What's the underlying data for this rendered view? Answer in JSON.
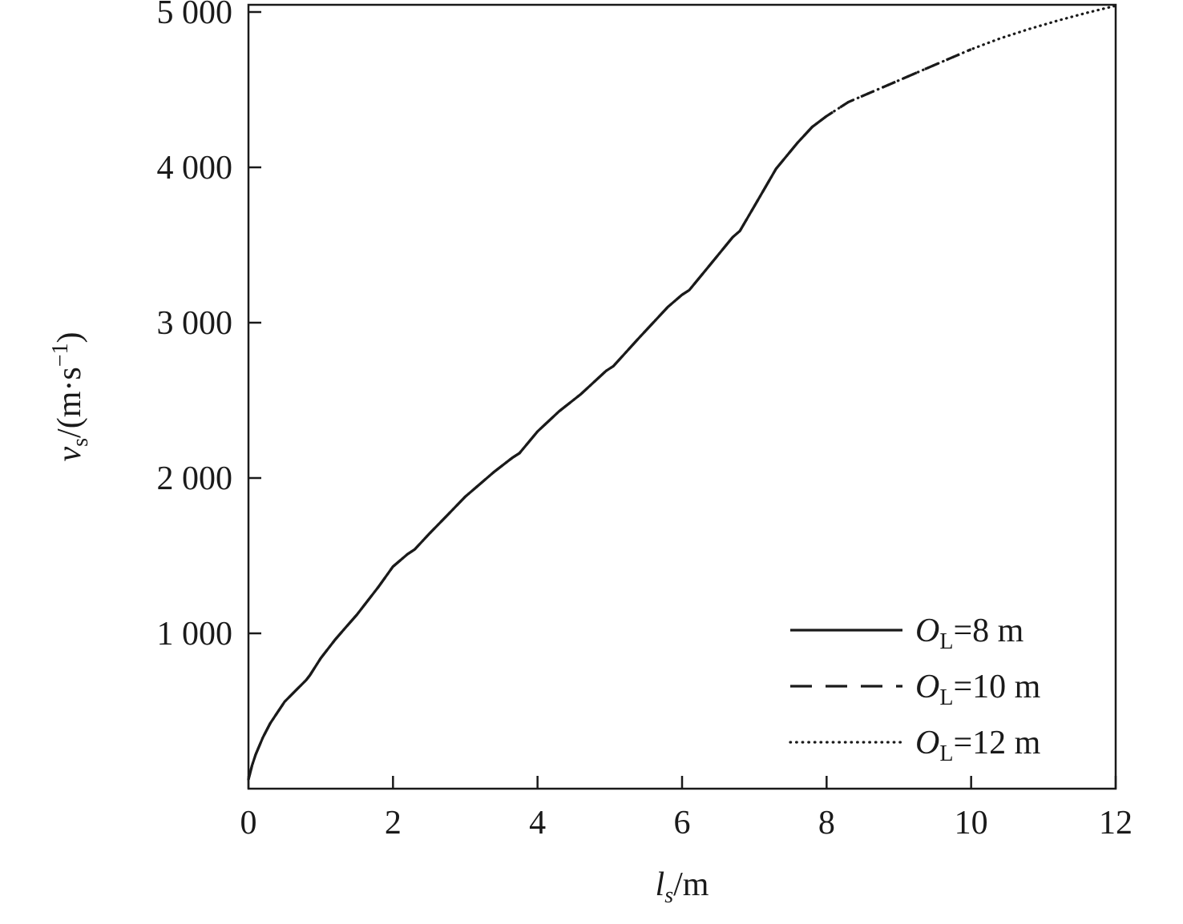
{
  "chart_data": {
    "type": "line",
    "title": "",
    "xlabel": "l_s/m",
    "ylabel": "v_s/(m·s^-1)",
    "xlabel_parts": [
      {
        "t": "l",
        "style": "italic"
      },
      {
        "t": "s",
        "script": "sub",
        "style": "italic"
      },
      {
        "t": "/m"
      }
    ],
    "ylabel_parts": [
      {
        "t": "v",
        "style": "italic"
      },
      {
        "t": "s",
        "script": "sub"
      },
      {
        "t": "/(m·s"
      },
      {
        "t": "−1",
        "script": "sup"
      },
      {
        "t": ")"
      }
    ],
    "xlim": [
      0,
      12
    ],
    "ylim": [
      0,
      5000
    ],
    "grid": false,
    "legend_position": "bottom-right",
    "line_color": "#1a1a1a",
    "xticks": {
      "values": [
        0,
        2,
        4,
        6,
        8,
        10,
        12
      ],
      "labels": [
        "0",
        "2",
        "4",
        "6",
        "8",
        "10",
        "12"
      ]
    },
    "yticks": {
      "values": [
        1000,
        2000,
        3000,
        4000,
        5000
      ],
      "labels": [
        "1 000",
        "2 000",
        "3 000",
        "4 000",
        "5 000"
      ]
    },
    "x": [
      0,
      0.05,
      0.1,
      0.2,
      0.3,
      0.4,
      0.5,
      0.65,
      0.8,
      0.85,
      1,
      1.2,
      1.35,
      1.5,
      1.8,
      2,
      2.2,
      2.3,
      2.5,
      2.75,
      3,
      3.2,
      3.4,
      3.65,
      3.75,
      4,
      4.3,
      4.6,
      4.95,
      5.05,
      5.4,
      5.8,
      6,
      6.1,
      6.4,
      6.7,
      6.8,
      7,
      7.3,
      7.6,
      7.8,
      8,
      8.3,
      8.6,
      9,
      9.4,
      9.7,
      10,
      10.4,
      10.8,
      11.2,
      11.6,
      12
    ],
    "series": [
      {
        "name": "O_L=8 m",
        "label_parts": [
          {
            "t": "O",
            "style": "italic"
          },
          {
            "t": "L",
            "script": "sub"
          },
          {
            "t": "=8 m"
          }
        ],
        "style": "solid",
        "values": [
          60,
          150,
          220,
          330,
          420,
          490,
          560,
          630,
          700,
          730,
          840,
          960,
          1040,
          1120,
          1300,
          1430,
          1510,
          1540,
          1640,
          1760,
          1880,
          1960,
          2040,
          2130,
          2160,
          2300,
          2430,
          2540,
          2690,
          2720,
          2900,
          3100,
          3180,
          3210,
          3380,
          3550,
          3590,
          3750,
          3990,
          4160,
          4260,
          4330,
          null,
          null,
          null,
          null,
          null,
          null,
          null,
          null,
          null,
          null,
          null
        ]
      },
      {
        "name": "O_L=10 m",
        "label_parts": [
          {
            "t": "O",
            "style": "italic"
          },
          {
            "t": "L",
            "script": "sub"
          },
          {
            "t": "=10 m"
          }
        ],
        "style": "dashed",
        "values": [
          60,
          150,
          220,
          330,
          420,
          490,
          560,
          630,
          700,
          730,
          840,
          960,
          1040,
          1120,
          1300,
          1430,
          1510,
          1540,
          1640,
          1760,
          1880,
          1960,
          2040,
          2130,
          2160,
          2300,
          2430,
          2540,
          2690,
          2720,
          2900,
          3100,
          3180,
          3210,
          3380,
          3550,
          3590,
          3750,
          3990,
          4160,
          4260,
          4330,
          4420,
          4480,
          4560,
          4640,
          4700,
          4760,
          null,
          null,
          null,
          null,
          null
        ]
      },
      {
        "name": "O_L=12 m",
        "label_parts": [
          {
            "t": "O",
            "style": "italic"
          },
          {
            "t": "L",
            "script": "sub"
          },
          {
            "t": "=12 m"
          }
        ],
        "style": "dotted",
        "values": [
          60,
          150,
          220,
          330,
          420,
          490,
          560,
          630,
          700,
          730,
          840,
          960,
          1040,
          1120,
          1300,
          1430,
          1510,
          1540,
          1640,
          1760,
          1880,
          1960,
          2040,
          2130,
          2160,
          2300,
          2430,
          2540,
          2690,
          2720,
          2900,
          3100,
          3180,
          3210,
          3380,
          3550,
          3590,
          3750,
          3990,
          4160,
          4260,
          4330,
          4420,
          4480,
          4560,
          4640,
          4700,
          4760,
          4830,
          4890,
          4945,
          4995,
          5040
        ]
      }
    ]
  }
}
